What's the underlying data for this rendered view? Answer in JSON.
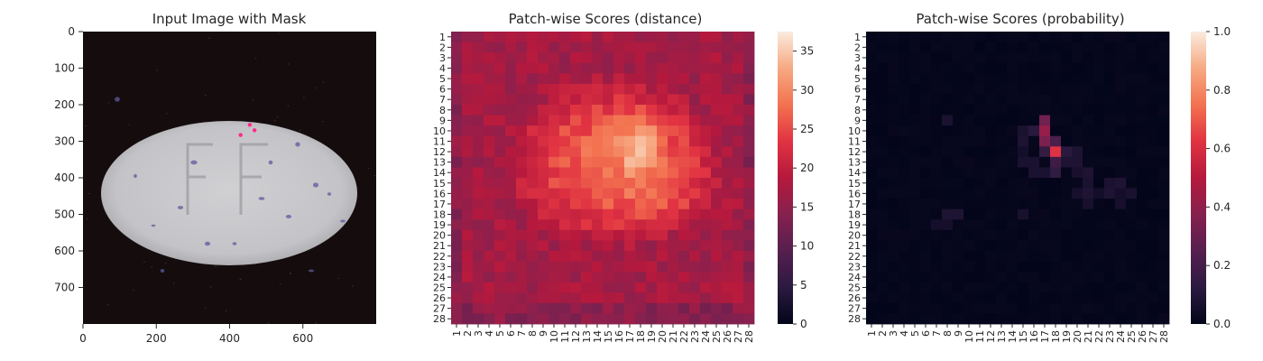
{
  "chart_data": [
    {
      "type": "image",
      "title": "Input Image with Mask",
      "xlim": [
        0,
        800
      ],
      "ylim": [
        800,
        0
      ],
      "xticks": [
        "0",
        "200",
        "400",
        "600"
      ],
      "yticks": [
        "0",
        "100",
        "200",
        "300",
        "400",
        "500",
        "600",
        "700"
      ],
      "mask_points": [
        [
          430,
          283
        ],
        [
          455,
          255
        ],
        [
          468,
          270
        ]
      ],
      "colors": {
        "background": "#150d0d",
        "pill": "#c6c5c8",
        "speckle": "#5e5a9e",
        "mask": "#ff2a8c"
      }
    },
    {
      "type": "heatmap",
      "title": "Patch-wise Scores (distance)",
      "rows": 28,
      "cols": 28,
      "xticks": [
        "1",
        "2",
        "3",
        "4",
        "5",
        "6",
        "7",
        "8",
        "9",
        "10",
        "11",
        "12",
        "13",
        "14",
        "15",
        "16",
        "17",
        "18",
        "19",
        "20",
        "21",
        "22",
        "23",
        "24",
        "25",
        "26",
        "27",
        "28"
      ],
      "yticks": [
        "1",
        "2",
        "3",
        "4",
        "5",
        "6",
        "7",
        "8",
        "9",
        "10",
        "11",
        "12",
        "13",
        "14",
        "15",
        "16",
        "17",
        "18",
        "19",
        "20",
        "21",
        "22",
        "23",
        "24",
        "25",
        "26",
        "27",
        "28"
      ],
      "value_range": [
        0,
        37.5
      ],
      "colorbar_ticks": [
        "0",
        "5",
        "10",
        "15",
        "20",
        "25",
        "30",
        "35"
      ],
      "colormap": "rocket"
    },
    {
      "type": "heatmap",
      "title": "Patch-wise Scores (probability)",
      "rows": 28,
      "cols": 28,
      "xticks": [
        "1",
        "2",
        "3",
        "4",
        "5",
        "6",
        "7",
        "8",
        "9",
        "10",
        "11",
        "12",
        "13",
        "14",
        "15",
        "16",
        "17",
        "18",
        "19",
        "20",
        "21",
        "22",
        "23",
        "24",
        "25",
        "26",
        "27",
        "28"
      ],
      "yticks": [
        "1",
        "2",
        "3",
        "4",
        "5",
        "6",
        "7",
        "8",
        "9",
        "10",
        "11",
        "12",
        "13",
        "14",
        "15",
        "16",
        "17",
        "18",
        "19",
        "20",
        "21",
        "22",
        "23",
        "24",
        "25",
        "26",
        "27",
        "28"
      ],
      "value_range": [
        0,
        1.0
      ],
      "colorbar_ticks": [
        "0.0",
        "0.2",
        "0.4",
        "0.6",
        "0.8",
        "1.0"
      ],
      "colormap": "rocket",
      "peak_cells": [
        {
          "row": 12,
          "col": 18,
          "value": 0.62
        },
        {
          "row": 10,
          "col": 17,
          "value": 0.42
        },
        {
          "row": 9,
          "col": 17,
          "value": 0.32
        },
        {
          "row": 11,
          "col": 17,
          "value": 0.35
        },
        {
          "row": 11,
          "col": 18,
          "value": 0.22
        },
        {
          "row": 13,
          "col": 18,
          "value": 0.18
        },
        {
          "row": 10,
          "col": 16,
          "value": 0.12
        },
        {
          "row": 12,
          "col": 17,
          "value": 0.15
        },
        {
          "row": 12,
          "col": 19,
          "value": 0.12
        },
        {
          "row": 14,
          "col": 18,
          "value": 0.14
        }
      ]
    }
  ]
}
